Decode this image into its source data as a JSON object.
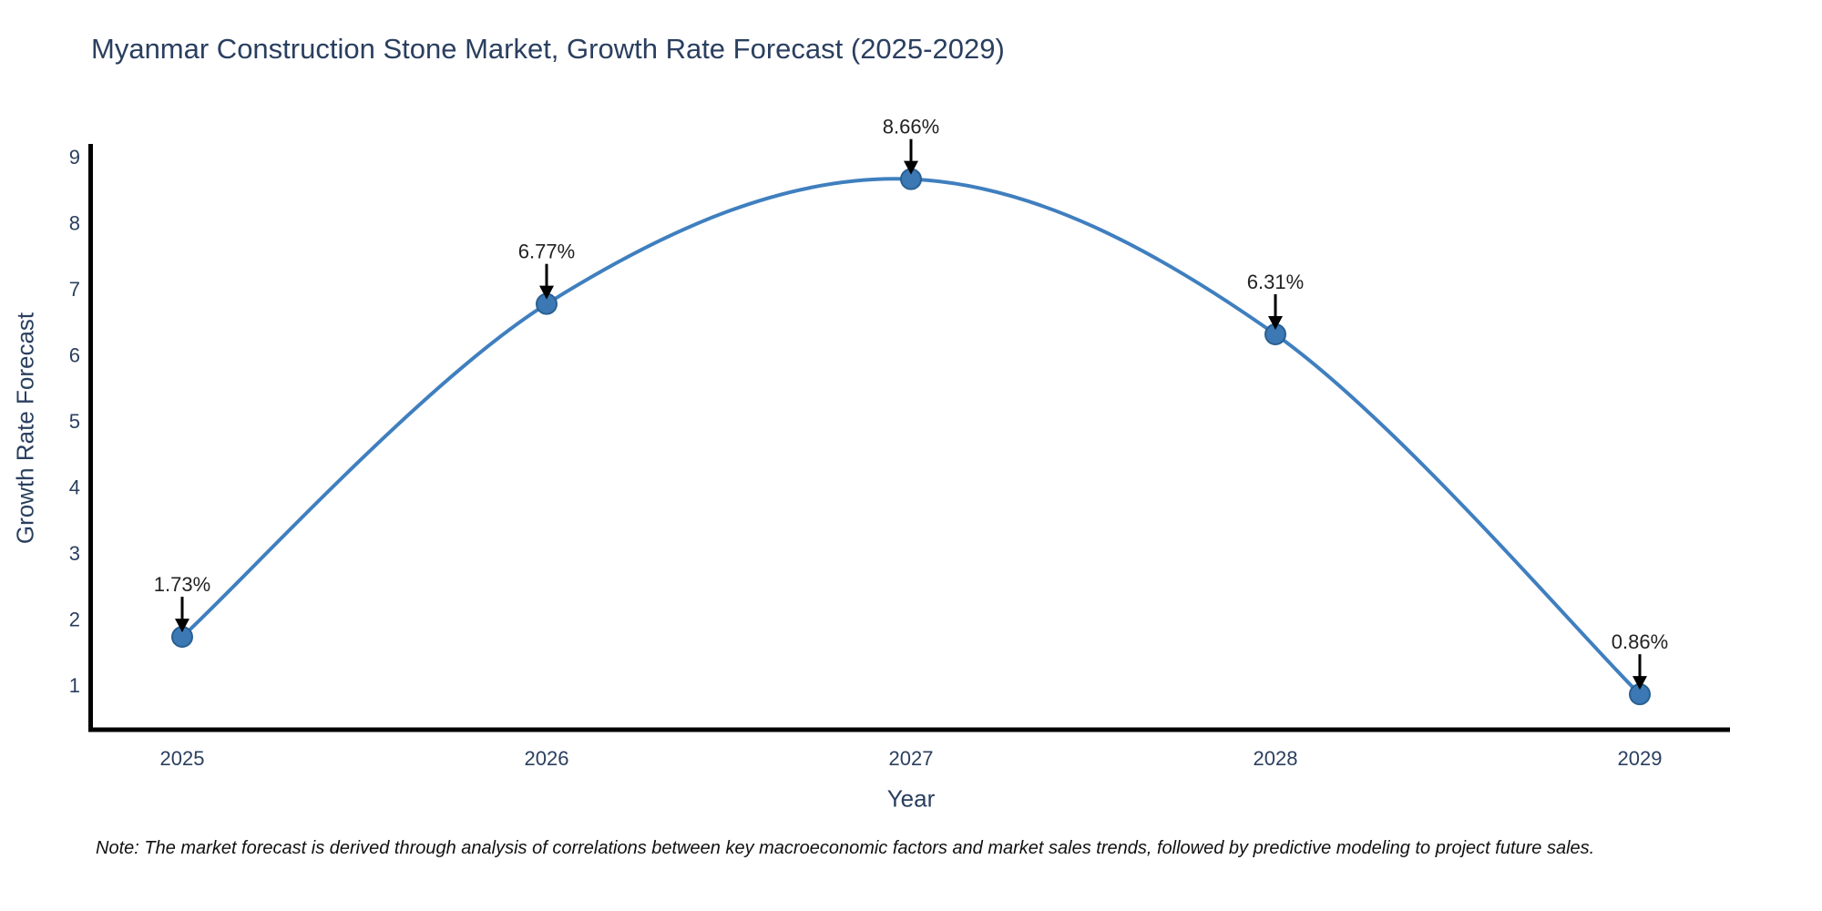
{
  "note": "Note: The market forecast is derived through analysis of correlations between key macroeconomic factors and market sales trends, followed by predictive modeling to project future sales.",
  "chart_data": {
    "type": "line",
    "title": "Myanmar Construction Stone Market, Growth Rate Forecast (2025-2029)",
    "xlabel": "Year",
    "ylabel": "Growth Rate Forecast",
    "categories": [
      "2025",
      "2026",
      "2027",
      "2028",
      "2029"
    ],
    "values": [
      1.73,
      6.77,
      8.66,
      6.31,
      0.86
    ],
    "point_labels": [
      "1.73%",
      "6.77%",
      "8.66%",
      "6.31%",
      "0.86%"
    ],
    "yticks": [
      1,
      2,
      3,
      4,
      5,
      6,
      7,
      8,
      9
    ],
    "ylim": [
      0.35,
      9.2
    ],
    "line_shape": "spline",
    "grid": false,
    "legend_position": "none",
    "colors": {
      "line": "#3f7fbf",
      "marker_fill": "#3b78b4",
      "marker_edge": "#2a6092",
      "axis": "#000000",
      "arrow": "#000000",
      "title_text": "#2a3f5f",
      "tick_text": "#2a3f5f",
      "annotation_text": "#222222"
    }
  }
}
